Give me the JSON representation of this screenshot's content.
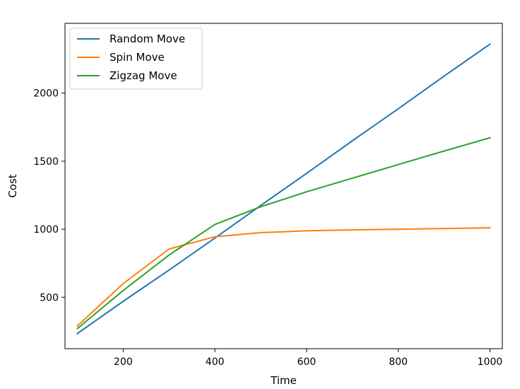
{
  "chart_data": {
    "type": "line",
    "title": "",
    "xlabel": "Time",
    "ylabel": "Cost",
    "xlim": [
      73,
      1027
    ],
    "ylim": [
      122,
      2513
    ],
    "xticks": [
      200,
      400,
      600,
      800,
      1000
    ],
    "yticks": [
      500,
      1000,
      1500,
      2000
    ],
    "grid": false,
    "legend_position": "upper-left",
    "series": [
      {
        "name": "Random Move",
        "color": "#1f77b4",
        "x": [
          100,
          200,
          300,
          400,
          500,
          600,
          700,
          800,
          900,
          1000
        ],
        "y": [
          233,
          470,
          700,
          935,
          1175,
          1410,
          1650,
          1885,
          2125,
          2360
        ]
      },
      {
        "name": "Spin Move",
        "color": "#ff7f0e",
        "x": [
          100,
          200,
          300,
          400,
          500,
          600,
          700,
          800,
          900,
          1000
        ],
        "y": [
          290,
          600,
          855,
          945,
          975,
          988,
          995,
          1000,
          1005,
          1010
        ]
      },
      {
        "name": "Zigzag Move",
        "color": "#2ca02c",
        "x": [
          100,
          200,
          300,
          400,
          500,
          600,
          700,
          800,
          900,
          1000
        ],
        "y": [
          270,
          550,
          810,
          1035,
          1165,
          1275,
          1375,
          1475,
          1575,
          1672
        ]
      }
    ]
  }
}
